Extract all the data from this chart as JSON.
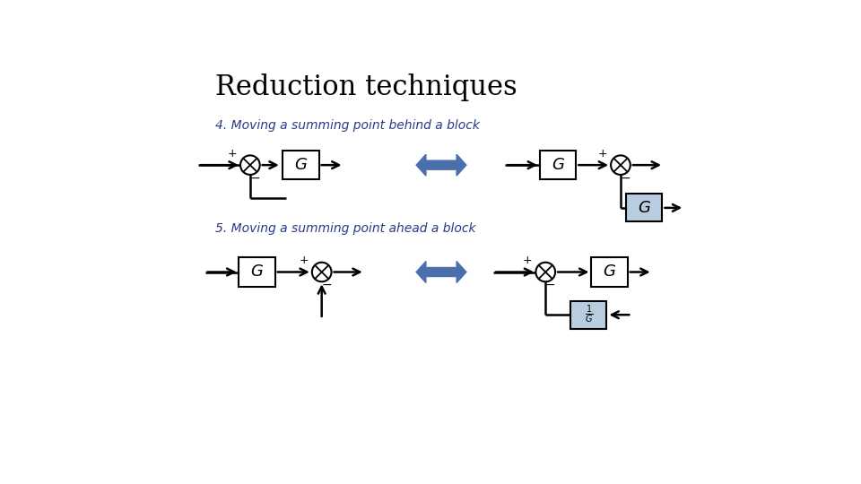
{
  "title": "Reduction techniques",
  "subtitle4": "4. Moving a summing point behind a block",
  "subtitle5": "5. Moving a summing point ahead a block",
  "title_color": "#000000",
  "subtitle_color": "#2a3a8a",
  "bg_color": "#ffffff",
  "box_color": "#ffffff",
  "box_edge": "#000000",
  "shaded_box_color": "#b8cde0",
  "arrow_color": "#4a6faa",
  "line_color": "#000000",
  "title_fontsize": 22,
  "subtitle_fontsize": 10,
  "label_fontsize": 14,
  "sign_fontsize": 9
}
